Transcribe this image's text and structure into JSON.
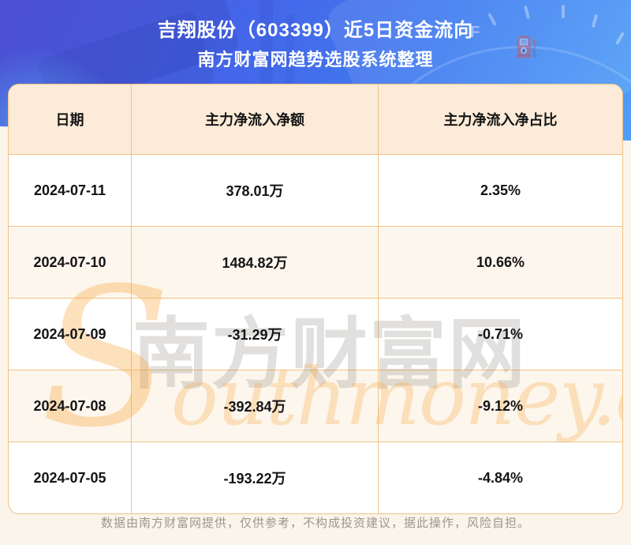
{
  "chart_data": {
    "type": "table",
    "title": "吉翔股份（603399）近5日资金流向",
    "subtitle": "南方财富网趋势选股系统整理",
    "columns": [
      "日期",
      "主力净流入净额",
      "主力净流入净占比"
    ],
    "rows": [
      [
        "2024-07-11",
        "378.01万",
        "2.35%"
      ],
      [
        "2024-07-10",
        "1484.82万",
        "10.66%"
      ],
      [
        "2024-07-09",
        "-31.29万",
        "-0.71%"
      ],
      [
        "2024-07-08",
        "-392.84万",
        "-9.12%"
      ],
      [
        "2024-07-05",
        "-193.22万",
        "-4.84%"
      ]
    ],
    "categories": [
      "2024-07-11",
      "2024-07-10",
      "2024-07-09",
      "2024-07-08",
      "2024-07-05"
    ],
    "series": [
      {
        "name": "主力净流入净额(万)",
        "values": [
          378.01,
          1484.82,
          -31.29,
          -392.84,
          -193.22
        ]
      },
      {
        "name": "主力净流入净占比(%)",
        "values": [
          2.35,
          10.66,
          -0.71,
          -9.12,
          -4.84
        ]
      }
    ],
    "legend_position": "none",
    "grid": true
  },
  "watermark": {
    "cn": "南方财富网",
    "en_initial": "S",
    "en_rest": "outhmoney.com"
  },
  "decor": {
    "gauge_letter": "F",
    "fuel_pump_glyph": "⛽"
  },
  "footer": {
    "disclaimer": "数据由南方财富网提供，仅供参考，不构成投资建议，据此操作，风险自担。"
  },
  "colors": {
    "banner_blue_top": "#5456dd",
    "banner_blue_bottom": "#4f9ff6",
    "table_border_orange": "#f0c285",
    "header_row_bg": "#fcebd8",
    "alt_row_bg": "#fdf6ed",
    "page_bg": "#fbf4eb",
    "watermark_orange": "#f8a43c",
    "title_text": "#ffffff",
    "cell_text": "#141414",
    "footer_text": "#9b968f"
  }
}
